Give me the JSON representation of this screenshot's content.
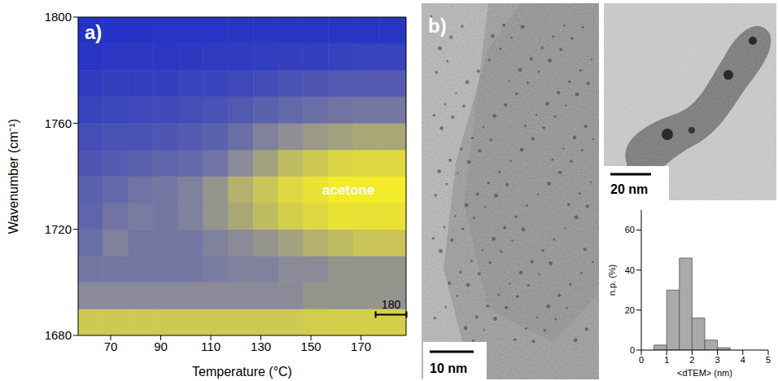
{
  "chart_data": [
    {
      "type": "heatmap",
      "panel_label": "a)",
      "x_label": "Temperature (°C)",
      "y_label": "Wavenumber (cm⁻¹)",
      "x": [
        62,
        72,
        82,
        92,
        102,
        112,
        122,
        132,
        142,
        152,
        162,
        172,
        182
      ],
      "y": [
        1685,
        1695,
        1705,
        1715,
        1725,
        1735,
        1745,
        1755,
        1765,
        1775,
        1785,
        1795
      ],
      "cells": [
        [
          0.82,
          0.82,
          0.82,
          0.82,
          0.82,
          0.82,
          0.82,
          0.82,
          0.82,
          0.84,
          0.85,
          0.85,
          0.85
        ],
        [
          0.5,
          0.5,
          0.5,
          0.5,
          0.5,
          0.5,
          0.5,
          0.5,
          0.5,
          0.55,
          0.55,
          0.55,
          0.55
        ],
        [
          0.4,
          0.4,
          0.4,
          0.4,
          0.4,
          0.42,
          0.45,
          0.45,
          0.5,
          0.5,
          0.55,
          0.55,
          0.55
        ],
        [
          0.35,
          0.45,
          0.4,
          0.4,
          0.4,
          0.45,
          0.5,
          0.55,
          0.62,
          0.7,
          0.75,
          0.8,
          0.8
        ],
        [
          0.3,
          0.38,
          0.42,
          0.4,
          0.45,
          0.55,
          0.65,
          0.75,
          0.85,
          0.9,
          0.95,
          0.95,
          0.95
        ],
        [
          0.28,
          0.32,
          0.38,
          0.4,
          0.45,
          0.55,
          0.7,
          0.8,
          0.9,
          0.95,
          1,
          1,
          1
        ],
        [
          0.22,
          0.25,
          0.28,
          0.3,
          0.32,
          0.38,
          0.5,
          0.62,
          0.75,
          0.82,
          0.88,
          0.9,
          0.9
        ],
        [
          0.18,
          0.2,
          0.2,
          0.22,
          0.25,
          0.28,
          0.35,
          0.45,
          0.52,
          0.58,
          0.62,
          0.65,
          0.65
        ],
        [
          0.12,
          0.14,
          0.15,
          0.16,
          0.18,
          0.2,
          0.24,
          0.28,
          0.32,
          0.35,
          0.38,
          0.4,
          0.4
        ],
        [
          0.08,
          0.1,
          0.1,
          0.1,
          0.12,
          0.13,
          0.15,
          0.17,
          0.2,
          0.22,
          0.24,
          0.25,
          0.25
        ],
        [
          0.05,
          0.06,
          0.06,
          0.06,
          0.07,
          0.08,
          0.08,
          0.09,
          0.1,
          0.1,
          0.11,
          0.12,
          0.12
        ],
        [
          0.03,
          0.03,
          0.03,
          0.04,
          0.04,
          0.04,
          0.05,
          0.05,
          0.05,
          0.05,
          0.05,
          0.05,
          0.05
        ]
      ],
      "xlim": [
        57,
        188
      ],
      "ylim": [
        1680,
        1800
      ],
      "xticks": [
        70,
        90,
        110,
        130,
        150,
        170
      ],
      "yticks": [
        1680,
        1720,
        1760,
        1800
      ],
      "annotations": [
        {
          "text": "acetone",
          "x": 165,
          "y": 1733,
          "color": "#ffffff"
        },
        {
          "text": "180",
          "x": 182,
          "y": 1690,
          "color": "#000000",
          "marker": "scale_bar"
        }
      ]
    },
    {
      "type": "histogram",
      "x_label": "<dTEM> (nm)",
      "y_label": "n.p. (%)",
      "bins": [
        0.5,
        1,
        1.5,
        2,
        2.5,
        3,
        3.5
      ],
      "counts": [
        2.5,
        30,
        46,
        16,
        5,
        1.2
      ],
      "xlim": [
        0,
        5
      ],
      "ylim": [
        0,
        70
      ],
      "xticks": [
        0,
        1,
        2,
        3,
        4,
        5
      ],
      "yticks": [
        0,
        20,
        40,
        60
      ],
      "color": "#aaaaaa"
    }
  ],
  "images": {
    "panel_label": "b)",
    "scale_bar": "10 nm",
    "inset_scale_bar": "20 nm"
  }
}
